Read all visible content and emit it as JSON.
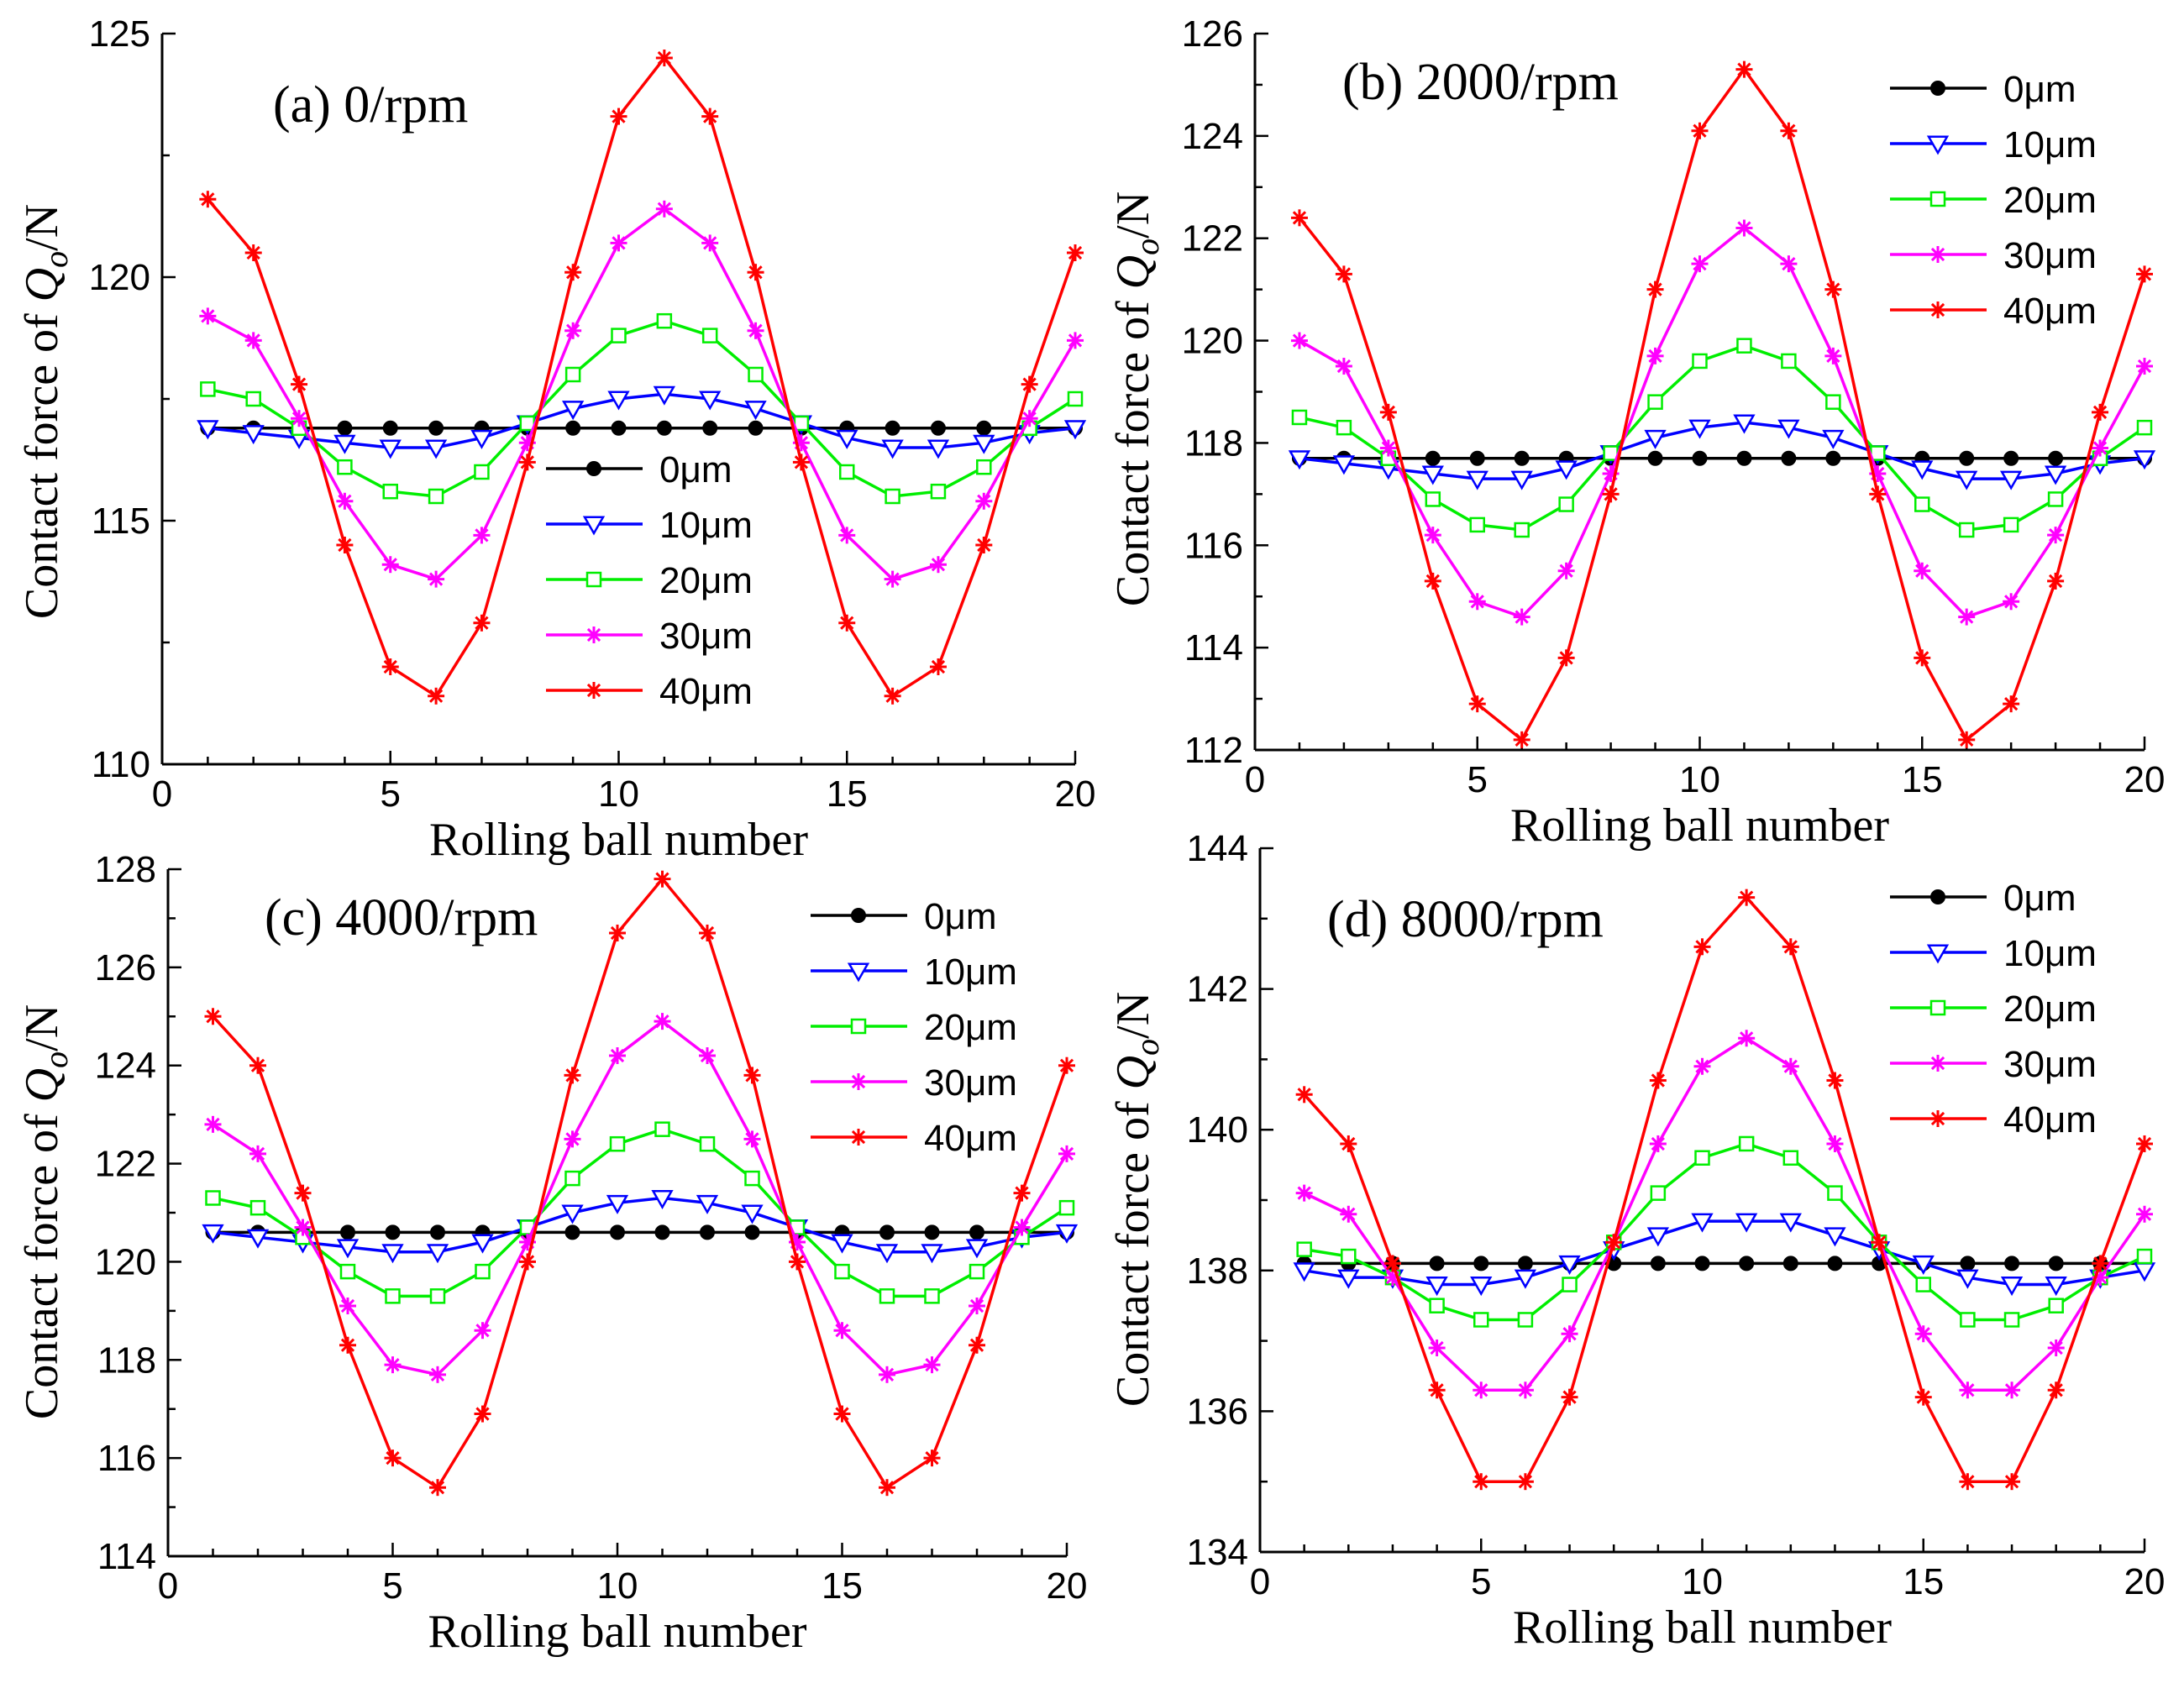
{
  "figure": {
    "ylabel_prefix": "Contact force of ",
    "ylabel_symbol": "Q",
    "ylabel_subscript": "o",
    "ylabel_suffix": "/N"
  },
  "chart_data": [
    {
      "type": "line",
      "title": "(a) 0/rpm",
      "xlabel": "Rolling ball number",
      "ylabel": "Contact force of Qo/N",
      "xlim": [
        0,
        20
      ],
      "ylim": [
        110,
        125
      ],
      "xticks": [
        0,
        5,
        10,
        15,
        20
      ],
      "yticks": [
        110,
        115,
        120,
        125
      ],
      "legend_position": "center",
      "x": [
        1,
        2,
        3,
        4,
        5,
        6,
        7,
        8,
        9,
        10,
        11,
        12,
        13,
        14,
        15,
        16,
        17,
        18,
        19,
        20
      ],
      "series": [
        {
          "name": "0μm",
          "color": "#000000",
          "marker": "circle",
          "values": [
            116.9,
            116.9,
            116.9,
            116.9,
            116.9,
            116.9,
            116.9,
            116.9,
            116.9,
            116.9,
            116.9,
            116.9,
            116.9,
            116.9,
            116.9,
            116.9,
            116.9,
            116.9,
            116.9,
            116.9
          ]
        },
        {
          "name": "10μm",
          "color": "#0000ff",
          "marker": "triangle-down",
          "values": [
            116.9,
            116.8,
            116.7,
            116.6,
            116.5,
            116.5,
            116.7,
            117.0,
            117.3,
            117.5,
            117.6,
            117.5,
            117.3,
            117.0,
            116.7,
            116.5,
            116.5,
            116.6,
            116.8,
            116.9
          ]
        },
        {
          "name": "20μm",
          "color": "#00ee00",
          "marker": "square",
          "values": [
            117.7,
            117.5,
            116.9,
            116.1,
            115.6,
            115.5,
            116.0,
            117.0,
            118.0,
            118.8,
            119.1,
            118.8,
            118.0,
            117.0,
            116.0,
            115.5,
            115.6,
            116.1,
            116.9,
            117.5
          ]
        },
        {
          "name": "30μm",
          "color": "#ff00ff",
          "marker": "star",
          "values": [
            119.2,
            118.7,
            117.1,
            115.4,
            114.1,
            113.8,
            114.7,
            116.6,
            118.9,
            120.7,
            121.4,
            120.7,
            118.9,
            116.6,
            114.7,
            113.8,
            114.1,
            115.4,
            117.1,
            118.7
          ]
        },
        {
          "name": "40μm",
          "color": "#ff0000",
          "marker": "star",
          "values": [
            121.6,
            120.5,
            117.8,
            114.5,
            112.0,
            111.4,
            112.9,
            116.2,
            120.1,
            123.3,
            124.5,
            123.3,
            120.1,
            116.2,
            112.9,
            111.4,
            112.0,
            114.5,
            117.8,
            120.5
          ]
        }
      ]
    },
    {
      "type": "line",
      "title": "(b) 2000/rpm",
      "xlabel": "Rolling ball number",
      "ylabel": "Contact force of Qo/N",
      "xlim": [
        0,
        20
      ],
      "ylim": [
        112,
        126
      ],
      "xticks": [
        0,
        5,
        10,
        15,
        20
      ],
      "yticks": [
        112,
        114,
        116,
        118,
        120,
        122,
        124,
        126
      ],
      "legend_position": "top-right",
      "x": [
        1,
        2,
        3,
        4,
        5,
        6,
        7,
        8,
        9,
        10,
        11,
        12,
        13,
        14,
        15,
        16,
        17,
        18,
        19,
        20
      ],
      "series": [
        {
          "name": "0μm",
          "color": "#000000",
          "marker": "circle",
          "values": [
            117.7,
            117.7,
            117.7,
            117.7,
            117.7,
            117.7,
            117.7,
            117.7,
            117.7,
            117.7,
            117.7,
            117.7,
            117.7,
            117.7,
            117.7,
            117.7,
            117.7,
            117.7,
            117.7,
            117.7
          ]
        },
        {
          "name": "10μm",
          "color": "#0000ff",
          "marker": "triangle-down",
          "values": [
            117.7,
            117.6,
            117.5,
            117.4,
            117.3,
            117.3,
            117.5,
            117.8,
            118.1,
            118.3,
            118.4,
            118.3,
            118.1,
            117.8,
            117.5,
            117.3,
            117.3,
            117.4,
            117.6,
            117.7
          ]
        },
        {
          "name": "20μm",
          "color": "#00ee00",
          "marker": "square",
          "values": [
            118.5,
            118.3,
            117.7,
            116.9,
            116.4,
            116.3,
            116.8,
            117.8,
            118.8,
            119.6,
            119.9,
            119.6,
            118.8,
            117.8,
            116.8,
            116.3,
            116.4,
            116.9,
            117.7,
            118.3
          ]
        },
        {
          "name": "30μm",
          "color": "#ff00ff",
          "marker": "star",
          "values": [
            120.0,
            119.5,
            117.9,
            116.2,
            114.9,
            114.6,
            115.5,
            117.4,
            119.7,
            121.5,
            122.2,
            121.5,
            119.7,
            117.4,
            115.5,
            114.6,
            114.9,
            116.2,
            117.9,
            119.5
          ]
        },
        {
          "name": "40μm",
          "color": "#ff0000",
          "marker": "star",
          "values": [
            122.4,
            121.3,
            118.6,
            115.3,
            112.9,
            112.2,
            113.8,
            117.0,
            121.0,
            124.1,
            125.3,
            124.1,
            121.0,
            117.0,
            113.8,
            112.2,
            112.9,
            115.3,
            118.6,
            121.3
          ]
        }
      ]
    },
    {
      "type": "line",
      "title": "(c) 4000/rpm",
      "xlabel": "Rolling ball number",
      "ylabel": "Contact force of Qo/N",
      "xlim": [
        0,
        20
      ],
      "ylim": [
        114,
        128
      ],
      "xticks": [
        0,
        5,
        10,
        15,
        20
      ],
      "yticks": [
        114,
        116,
        118,
        120,
        122,
        124,
        126,
        128
      ],
      "legend_position": "top-right",
      "x": [
        1,
        2,
        3,
        4,
        5,
        6,
        7,
        8,
        9,
        10,
        11,
        12,
        13,
        14,
        15,
        16,
        17,
        18,
        19,
        20
      ],
      "series": [
        {
          "name": "0μm",
          "color": "#000000",
          "marker": "circle",
          "values": [
            120.6,
            120.6,
            120.6,
            120.6,
            120.6,
            120.6,
            120.6,
            120.6,
            120.6,
            120.6,
            120.6,
            120.6,
            120.6,
            120.6,
            120.6,
            120.6,
            120.6,
            120.6,
            120.6,
            120.6
          ]
        },
        {
          "name": "10μm",
          "color": "#0000ff",
          "marker": "triangle-down",
          "values": [
            120.6,
            120.5,
            120.4,
            120.3,
            120.2,
            120.2,
            120.4,
            120.7,
            121.0,
            121.2,
            121.3,
            121.2,
            121.0,
            120.7,
            120.4,
            120.2,
            120.2,
            120.3,
            120.5,
            120.6
          ]
        },
        {
          "name": "20μm",
          "color": "#00ee00",
          "marker": "square",
          "values": [
            121.3,
            121.1,
            120.5,
            119.8,
            119.3,
            119.3,
            119.8,
            120.7,
            121.7,
            122.4,
            122.7,
            122.4,
            121.7,
            120.7,
            119.8,
            119.3,
            119.3,
            119.8,
            120.5,
            121.1
          ]
        },
        {
          "name": "30μm",
          "color": "#ff00ff",
          "marker": "star",
          "values": [
            122.8,
            122.2,
            120.7,
            119.1,
            117.9,
            117.7,
            118.6,
            120.4,
            122.5,
            124.2,
            124.9,
            124.2,
            122.5,
            120.4,
            118.6,
            117.7,
            117.9,
            119.1,
            120.7,
            122.2
          ]
        },
        {
          "name": "40μm",
          "color": "#ff0000",
          "marker": "star",
          "values": [
            125.0,
            124.0,
            121.4,
            118.3,
            116.0,
            115.4,
            116.9,
            120.0,
            123.8,
            126.7,
            127.8,
            126.7,
            123.8,
            120.0,
            116.9,
            115.4,
            116.0,
            118.3,
            121.4,
            124.0
          ]
        }
      ]
    },
    {
      "type": "line",
      "title": "(d) 8000/rpm",
      "xlabel": "Rolling ball number",
      "ylabel": "Contact force of Qo/N",
      "xlim": [
        0,
        20
      ],
      "ylim": [
        134,
        144
      ],
      "xticks": [
        0,
        5,
        10,
        15,
        20
      ],
      "yticks": [
        134,
        136,
        138,
        140,
        142,
        144
      ],
      "legend_position": "top-right",
      "x": [
        1,
        2,
        3,
        4,
        5,
        6,
        7,
        8,
        9,
        10,
        11,
        12,
        13,
        14,
        15,
        16,
        17,
        18,
        19,
        20
      ],
      "series": [
        {
          "name": "0μm",
          "color": "#000000",
          "marker": "circle",
          "values": [
            138.1,
            138.1,
            138.1,
            138.1,
            138.1,
            138.1,
            138.1,
            138.1,
            138.1,
            138.1,
            138.1,
            138.1,
            138.1,
            138.1,
            138.1,
            138.1,
            138.1,
            138.1,
            138.1,
            138.1
          ]
        },
        {
          "name": "10μm",
          "color": "#0000ff",
          "marker": "triangle-down",
          "values": [
            138.0,
            137.9,
            137.9,
            137.8,
            137.8,
            137.9,
            138.1,
            138.3,
            138.5,
            138.7,
            138.7,
            138.7,
            138.5,
            138.3,
            138.1,
            137.9,
            137.8,
            137.8,
            137.9,
            138.0
          ]
        },
        {
          "name": "20μm",
          "color": "#00ee00",
          "marker": "square",
          "values": [
            138.3,
            138.2,
            137.9,
            137.5,
            137.3,
            137.3,
            137.8,
            138.4,
            139.1,
            139.6,
            139.8,
            139.6,
            139.1,
            138.4,
            137.8,
            137.3,
            137.3,
            137.5,
            137.9,
            138.2
          ]
        },
        {
          "name": "30μm",
          "color": "#ff00ff",
          "marker": "star",
          "values": [
            139.1,
            138.8,
            137.9,
            136.9,
            136.3,
            136.3,
            137.1,
            138.4,
            139.8,
            140.9,
            141.3,
            140.9,
            139.8,
            138.4,
            137.1,
            136.3,
            136.3,
            136.9,
            137.9,
            138.8
          ]
        },
        {
          "name": "40μm",
          "color": "#ff0000",
          "marker": "star",
          "values": [
            140.5,
            139.8,
            138.1,
            136.3,
            135.0,
            135.0,
            136.2,
            138.4,
            140.7,
            142.6,
            143.3,
            142.6,
            140.7,
            138.4,
            136.2,
            135.0,
            135.0,
            136.3,
            138.1,
            139.8
          ]
        }
      ]
    }
  ]
}
